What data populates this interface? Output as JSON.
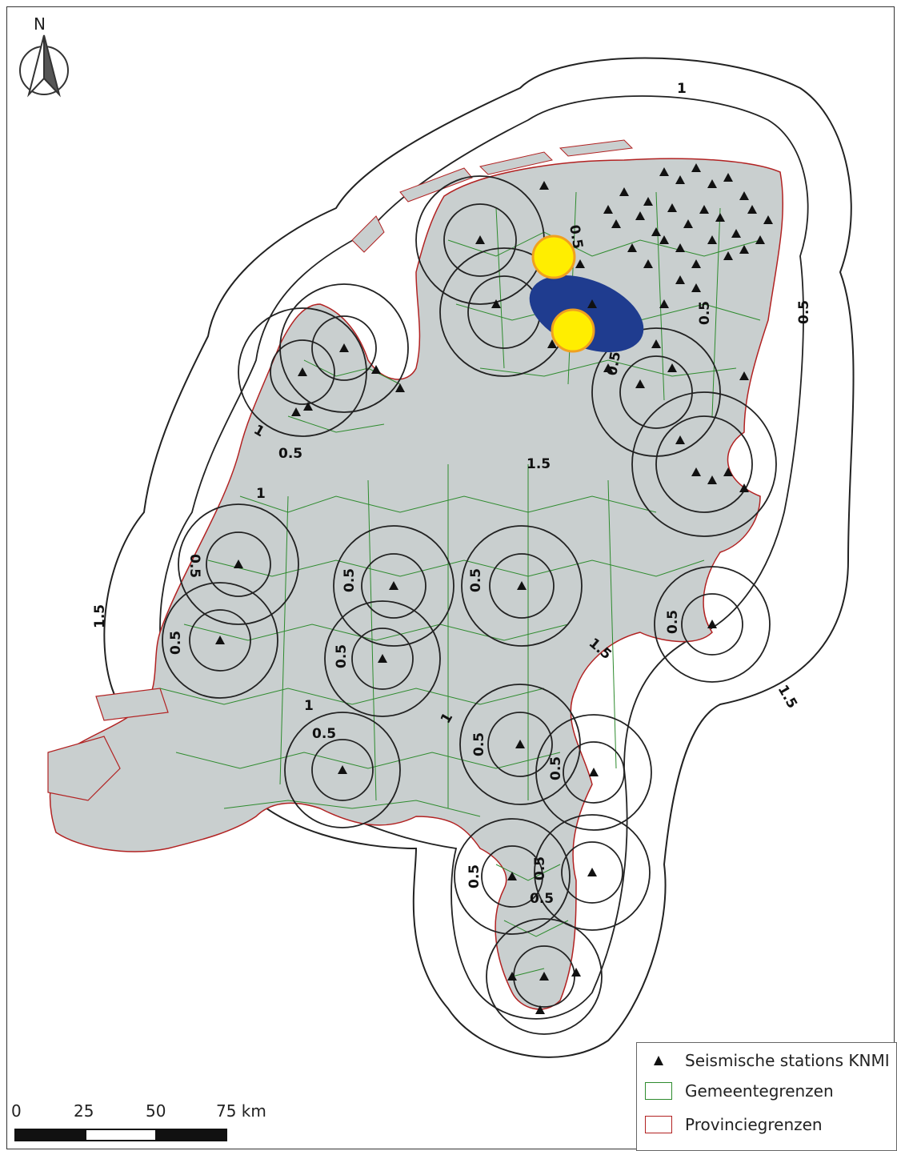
{
  "north_arrow": {
    "label": "N",
    "icon": "north-arrow-icon"
  },
  "legend": {
    "items": [
      {
        "label": "Seismische stations KNMI",
        "icon": "triangle-station-icon"
      },
      {
        "label": "Gemeentegrenzen",
        "icon": "green-box-icon",
        "color": "#2e8b2e"
      },
      {
        "label": "Provinciegrenzen",
        "icon": "red-box-icon",
        "color": "#b22222"
      }
    ]
  },
  "scale": {
    "ticks": [
      "0",
      "25",
      "50",
      "75 km"
    ]
  },
  "contours": {
    "c05": "0.5",
    "c1": "1",
    "c15": "1.5"
  },
  "colors": {
    "land": "#c9cfcf",
    "municipality_border": "#2e8b2e",
    "province_border": "#b22222",
    "marker_fill": "#ffee00",
    "marker_stroke": "#f0a020",
    "region_fill": "#1f3c8f"
  }
}
